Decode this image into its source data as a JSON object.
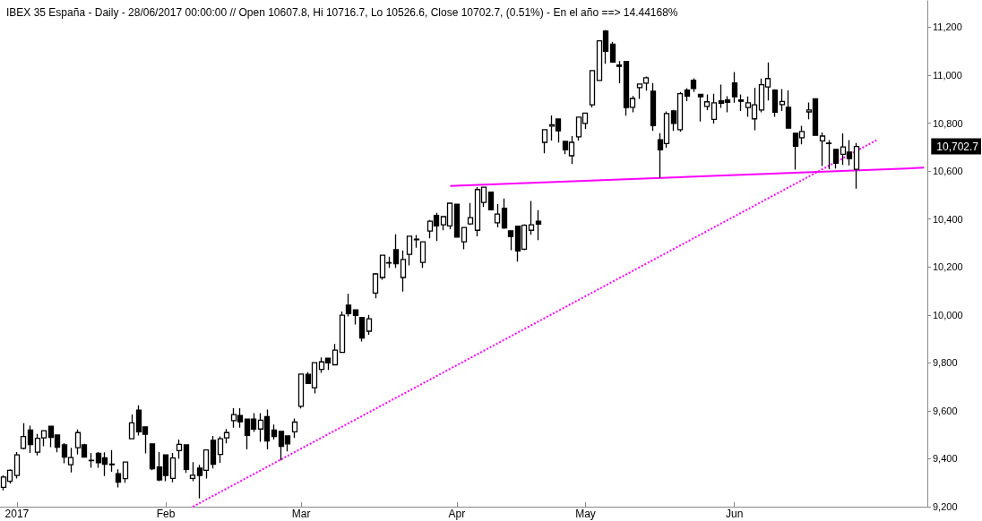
{
  "chart_data": {
    "type": "candlestick",
    "title": "IBEX 35 España - Daily - 28/06/2017 00:00:00 // Open 10607.8, Hi 10716.7, Lo 10526.6, Close 10702.7, (0.51%) - En el año ==> 14.44168%",
    "categories": [
      null,
      null,
      "2017",
      null,
      null,
      null,
      null,
      null,
      null,
      null,
      null,
      null,
      null,
      null,
      null,
      null,
      null,
      null,
      null,
      null,
      null,
      null,
      null,
      null,
      "Feb",
      null,
      null,
      null,
      null,
      null,
      null,
      null,
      null,
      null,
      null,
      null,
      null,
      null,
      null,
      null,
      null,
      null,
      null,
      null,
      "Mar",
      null,
      null,
      null,
      null,
      null,
      null,
      null,
      null,
      null,
      null,
      null,
      null,
      null,
      null,
      null,
      null,
      null,
      null,
      null,
      null,
      null,
      null,
      "Apr",
      null,
      null,
      null,
      null,
      null,
      null,
      null,
      null,
      null,
      null,
      null,
      null,
      null,
      null,
      null,
      null,
      null,
      null,
      "May",
      null,
      null,
      null,
      null,
      null,
      null,
      null,
      null,
      null,
      null,
      null,
      null,
      null,
      null,
      null,
      null,
      null,
      null,
      null,
      null,
      null,
      "Jun",
      null,
      null,
      null,
      null,
      null,
      null,
      null,
      null,
      null,
      null,
      null,
      null,
      null,
      null,
      null,
      null,
      null,
      null,
      null,
      null,
      null,
      null,
      null,
      null,
      null,
      null,
      null,
      null
    ],
    "ylim": [
      9200,
      11310
    ],
    "yticks": [
      {
        "value": 9200,
        "label": "9,200"
      },
      {
        "value": 9400,
        "label": "9,400"
      },
      {
        "value": 9600,
        "label": "9,600"
      },
      {
        "value": 9800,
        "label": "9,800"
      },
      {
        "value": 10000,
        "label": "10,000"
      },
      {
        "value": 10200,
        "label": "10,200"
      },
      {
        "value": 10400,
        "label": "10,400"
      },
      {
        "value": 10600,
        "label": "10,600"
      },
      {
        "value": 10800,
        "label": "10,800"
      },
      {
        "value": 11000,
        "label": "11,000"
      },
      {
        "value": 11200,
        "label": "11,200"
      }
    ],
    "grid": false,
    "annotations": [
      "10,702.7"
    ],
    "series": [
      {
        "color": "#000000",
        "ohlc": [
          [
            9281,
            9331,
            9268,
            9324
          ],
          [
            9306,
            9356,
            9296,
            9352
          ],
          [
            9330,
            9428,
            9318,
            9416
          ],
          [
            9443,
            9548,
            9439,
            9493
          ],
          [
            9520,
            9538,
            9424,
            9459
          ],
          [
            9427,
            9503,
            9414,
            9485
          ],
          [
            9487,
            9517,
            9452,
            9517
          ],
          [
            9536,
            9536,
            9448,
            9489
          ],
          [
            9499,
            9499,
            9427,
            9448
          ],
          [
            9458,
            9465,
            9381,
            9407
          ],
          [
            9375,
            9446,
            9343,
            9405
          ],
          [
            9446,
            9522,
            9418,
            9509
          ],
          [
            9458,
            9462,
            9407,
            9407
          ],
          [
            9392,
            9424,
            9362,
            9394
          ],
          [
            9423,
            9428,
            9362,
            9384
          ],
          [
            9404,
            9427,
            9328,
            9377
          ],
          [
            9378,
            9436,
            9346,
            9375
          ],
          [
            9338,
            9356,
            9280,
            9302
          ],
          [
            9317,
            9386,
            9300,
            9386
          ],
          [
            9483,
            9585,
            9483,
            9550
          ],
          [
            9603,
            9623,
            9497,
            9512
          ],
          [
            9533,
            9533,
            9422,
            9502
          ],
          [
            9462,
            9462,
            9352,
            9358
          ],
          [
            9366,
            9428,
            9306,
            9312
          ],
          [
            9416,
            9418,
            9306,
            9330
          ],
          [
            9318,
            9424,
            9302,
            9403
          ],
          [
            9434,
            9480,
            9400,
            9460
          ],
          [
            9458,
            9458,
            9341,
            9356
          ],
          [
            9318,
            9386,
            9306,
            9331
          ],
          [
            9361,
            9375,
            9235,
            9330
          ],
          [
            9352,
            9437,
            9318,
            9437
          ],
          [
            9477,
            9495,
            9360,
            9377
          ],
          [
            9418,
            9493,
            9383,
            9483
          ],
          [
            9487,
            9524,
            9464,
            9509
          ],
          [
            9559,
            9611,
            9530,
            9584
          ],
          [
            9580,
            9611,
            9530,
            9554
          ],
          [
            9565,
            9565,
            9439,
            9497
          ],
          [
            9565,
            9590,
            9512,
            9524
          ],
          [
            9524,
            9590,
            9471,
            9561
          ],
          [
            9576,
            9605,
            9439,
            9474
          ],
          [
            9520,
            9543,
            9480,
            9493
          ],
          [
            9514,
            9514,
            9393,
            9452
          ],
          [
            9495,
            9495,
            9431,
            9462
          ],
          [
            9512,
            9568,
            9487,
            9553
          ],
          [
            9619,
            9753,
            9610,
            9753
          ],
          [
            9752,
            9761,
            9714,
            9714
          ],
          [
            9696,
            9801,
            9672,
            9801
          ],
          [
            9773,
            9823,
            9758,
            9804
          ],
          [
            9819,
            9819,
            9770,
            9800
          ],
          [
            9792,
            9879,
            9789,
            9853
          ],
          [
            9844,
            10014,
            9842,
            9999
          ],
          [
            10041,
            10088,
            9994,
            10005
          ],
          [
            10021,
            10021,
            9960,
            9998
          ],
          [
            9989,
            9991,
            9889,
            9904
          ],
          [
            9932,
            10000,
            9917,
            9984
          ],
          [
            10091,
            10175,
            10069,
            10171
          ],
          [
            10156,
            10249,
            10147,
            10249
          ],
          [
            10216,
            10243,
            10196,
            10218
          ],
          [
            10272,
            10336,
            10196,
            10214
          ],
          [
            10156,
            10269,
            10097,
            10231
          ],
          [
            10253,
            10328,
            10206,
            10328
          ],
          [
            10316,
            10333,
            10280,
            10313
          ],
          [
            10219,
            10305,
            10196,
            10305
          ],
          [
            10350,
            10396,
            10319,
            10391
          ],
          [
            10415,
            10426,
            10308,
            10371
          ],
          [
            10376,
            10410,
            10353,
            10410
          ],
          [
            10371,
            10466,
            10358,
            10466
          ],
          [
            10462,
            10462,
            10325,
            10325
          ],
          [
            10305,
            10365,
            10274,
            10365
          ],
          [
            10380,
            10467,
            10375,
            10406
          ],
          [
            10353,
            10533,
            10328,
            10523
          ],
          [
            10469,
            10533,
            10450,
            10533
          ],
          [
            10512,
            10512,
            10439,
            10439
          ],
          [
            10384,
            10462,
            10365,
            10421
          ],
          [
            10445,
            10486,
            10359,
            10363
          ],
          [
            10351,
            10351,
            10270,
            10327
          ],
          [
            10370,
            10370,
            10222,
            10267
          ],
          [
            10274,
            10378,
            10270,
            10374
          ],
          [
            10353,
            10475,
            10334,
            10376
          ],
          [
            10391,
            10437,
            10312,
            10379
          ],
          [
            10720,
            10773,
            10674,
            10773
          ],
          [
            10788,
            10832,
            10727,
            10793
          ],
          [
            10817,
            10817,
            10719,
            10768
          ],
          [
            10724,
            10724,
            10670,
            10689
          ],
          [
            10664,
            10746,
            10629,
            10720
          ],
          [
            10743,
            10825,
            10727,
            10825
          ],
          [
            10799,
            10842,
            10775,
            10842
          ],
          [
            10876,
            11019,
            10866,
            11019
          ],
          [
            10978,
            11143,
            10978,
            11143
          ],
          [
            11184,
            11189,
            11048,
            11100
          ],
          [
            11129,
            11139,
            11055,
            11055
          ],
          [
            11042,
            11059,
            10966,
            11037
          ],
          [
            11057,
            11057,
            10831,
            10865
          ],
          [
            10866,
            10913,
            10845,
            10903
          ],
          [
            10948,
            10963,
            10901,
            10963
          ],
          [
            10967,
            10994,
            10936,
            10989
          ],
          [
            10933,
            10967,
            10768,
            10790
          ],
          [
            10731,
            10758,
            10571,
            10689
          ],
          [
            10715,
            10849,
            10698,
            10840
          ],
          [
            10851,
            10855,
            10768,
            10799
          ],
          [
            10773,
            10930,
            10764,
            10923
          ],
          [
            10938,
            10946,
            10892,
            10913
          ],
          [
            10979,
            10987,
            10930,
            10945
          ],
          [
            10920,
            10923,
            10807,
            10910
          ],
          [
            10870,
            10920,
            10854,
            10889
          ],
          [
            10816,
            10923,
            10798,
            10885
          ],
          [
            10893,
            10961,
            10864,
            10883
          ],
          [
            10897,
            10912,
            10845,
            10887
          ],
          [
            10968,
            11013,
            10885,
            10910
          ],
          [
            10897,
            10920,
            10851,
            10891
          ],
          [
            10865,
            10911,
            10826,
            10885
          ],
          [
            10818,
            10948,
            10770,
            10876
          ],
          [
            10855,
            10986,
            10845,
            10960
          ],
          [
            10951,
            11053,
            10895,
            10986
          ],
          [
            10938,
            10941,
            10826,
            10846
          ],
          [
            10877,
            10942,
            10851,
            10890
          ],
          [
            10866,
            10937,
            10779,
            10779
          ],
          [
            10758,
            10758,
            10606,
            10704
          ],
          [
            10739,
            10789,
            10712,
            10765
          ],
          [
            10847,
            10886,
            10816,
            10855
          ],
          [
            10901,
            10904,
            10749,
            10749
          ],
          [
            10726,
            10761,
            10621,
            10746
          ],
          [
            10717,
            10729,
            10608,
            10715
          ],
          [
            10690,
            10690,
            10611,
            10633
          ],
          [
            10670,
            10757,
            10626,
            10701
          ],
          [
            10679,
            10729,
            10624,
            10652
          ],
          [
            10607.8,
            10716.7,
            10526.6,
            10702.7
          ],
          null,
          null,
          null,
          null,
          null,
          null,
          null,
          null,
          null,
          null
        ]
      },
      {
        "type": "line",
        "color": "#ff00ff",
        "line_style": "solid",
        "values": [
          null,
          null,
          null,
          null,
          null,
          null,
          null,
          null,
          null,
          null,
          null,
          null,
          null,
          null,
          null,
          null,
          null,
          null,
          null,
          null,
          null,
          null,
          null,
          null,
          null,
          null,
          null,
          null,
          null,
          null,
          null,
          null,
          null,
          null,
          null,
          null,
          null,
          null,
          null,
          null,
          null,
          null,
          null,
          null,
          null,
          null,
          null,
          null,
          null,
          null,
          null,
          null,
          null,
          null,
          null,
          null,
          null,
          null,
          null,
          null,
          null,
          null,
          null,
          null,
          null,
          null,
          10538,
          null,
          null,
          null,
          null,
          null,
          null,
          null,
          null,
          null,
          null,
          null,
          null,
          null,
          null,
          null,
          null,
          null,
          null,
          null,
          null,
          null,
          null,
          null,
          null,
          null,
          null,
          null,
          null,
          null,
          null,
          null,
          null,
          null,
          null,
          null,
          null,
          null,
          null,
          null,
          null,
          null,
          null,
          null,
          null,
          null,
          null,
          null,
          null,
          null,
          null,
          null,
          null,
          null,
          null,
          null,
          null,
          null,
          null,
          null,
          null,
          null,
          null,
          null,
          null,
          null,
          null,
          null,
          null,
          null,
          10614
        ]
      },
      {
        "type": "line",
        "color": "#ff00ff",
        "line_style": "dotted",
        "values": [
          null,
          null,
          null,
          null,
          null,
          null,
          null,
          null,
          null,
          null,
          null,
          null,
          null,
          null,
          null,
          null,
          null,
          null,
          null,
          null,
          null,
          null,
          null,
          null,
          null,
          null,
          null,
          null,
          9200,
          null,
          null,
          null,
          null,
          null,
          null,
          null,
          null,
          null,
          null,
          null,
          null,
          null,
          null,
          null,
          null,
          null,
          null,
          null,
          null,
          null,
          null,
          null,
          null,
          null,
          null,
          null,
          null,
          null,
          null,
          null,
          null,
          null,
          null,
          null,
          null,
          null,
          null,
          null,
          null,
          null,
          null,
          null,
          null,
          null,
          null,
          null,
          null,
          null,
          null,
          null,
          null,
          null,
          null,
          null,
          null,
          null,
          null,
          null,
          null,
          null,
          null,
          null,
          null,
          null,
          null,
          null,
          null,
          null,
          null,
          null,
          null,
          null,
          null,
          null,
          null,
          null,
          null,
          null,
          null,
          null,
          null,
          null,
          null,
          null,
          null,
          null,
          null,
          null,
          null,
          null,
          null,
          null,
          null,
          null,
          null,
          null,
          null,
          null,
          null,
          10729,
          null,
          null,
          null,
          null,
          null,
          null,
          null
        ]
      }
    ]
  }
}
